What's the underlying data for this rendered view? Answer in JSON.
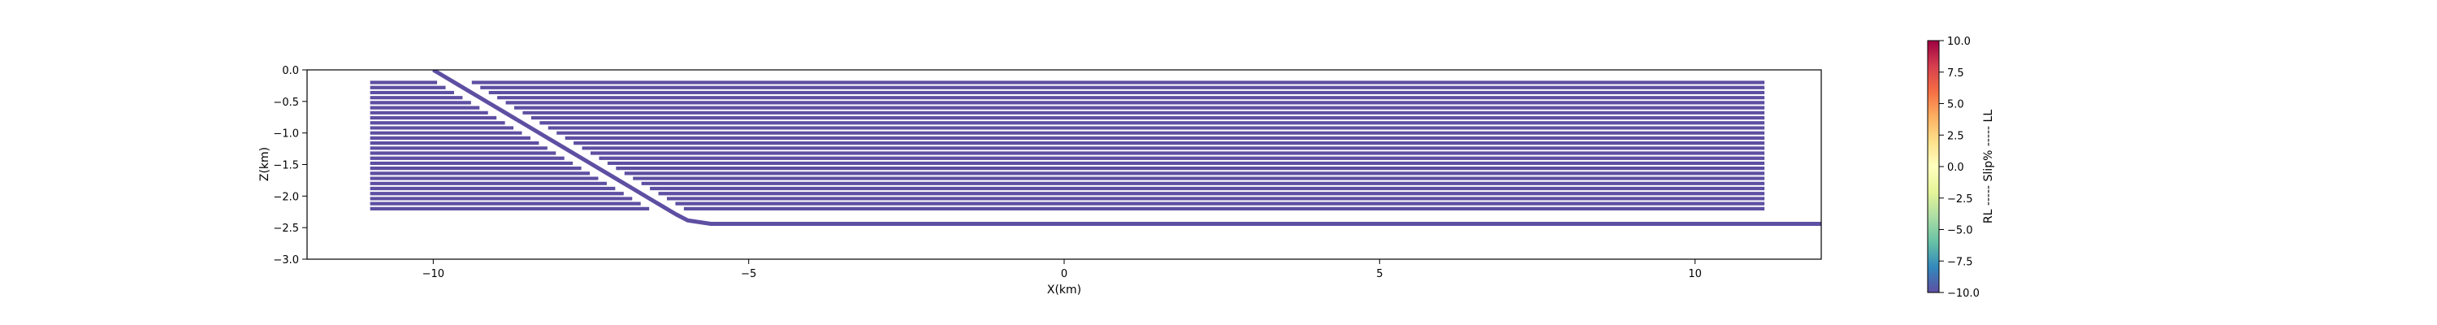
{
  "chart_data": [
    {
      "type": "line",
      "xlabel": "X(km)",
      "ylabel": "Z(km)",
      "xlim": [
        -12,
        12
      ],
      "ylim": [
        -3.0,
        0.0
      ],
      "xticks": [
        -10,
        -5,
        0,
        5,
        10
      ],
      "xtick_labels": [
        "−10",
        "−5",
        "0",
        "5",
        "10"
      ],
      "yticks": [
        0.0,
        -0.5,
        -1.0,
        -1.5,
        -2.0,
        -2.5,
        -3.0
      ],
      "ytick_labels": [
        "0.0",
        "−0.5",
        "−1.0",
        "−1.5",
        "−2.0",
        "−2.5",
        "−3.0"
      ],
      "grid": false,
      "line_color": "#5e4fa2",
      "main_fault": {
        "x": [
          -10.0,
          -6.0,
          -5.6,
          12.0
        ],
        "z": [
          0.0,
          -2.38,
          -2.44,
          -2.44
        ]
      },
      "branch_faults": {
        "x_left": -11.0,
        "x_right": 11.1,
        "z_top": -0.2,
        "z_bottom": -2.2,
        "count": 26,
        "gap_width_km": 0.55
      }
    },
    {
      "type": "heatmap",
      "role": "colorbar",
      "label": "RL ----- Slip% ----- LL",
      "range": [
        -10.0,
        10.0
      ],
      "ticks": [
        10.0,
        7.5,
        5.0,
        2.5,
        0.0,
        -2.5,
        -5.0,
        -7.5,
        -10.0
      ],
      "tick_labels": [
        "10.0",
        "7.5",
        "5.0",
        "2.5",
        "0.0",
        "−2.5",
        "−5.0",
        "−7.5",
        "−10.0"
      ],
      "colormap": [
        "#5e4fa2",
        "#3288bd",
        "#66c2a5",
        "#abdda4",
        "#e6f598",
        "#ffffbf",
        "#fee08b",
        "#fdae61",
        "#f46d43",
        "#d53e4f",
        "#9e0142"
      ]
    }
  ]
}
